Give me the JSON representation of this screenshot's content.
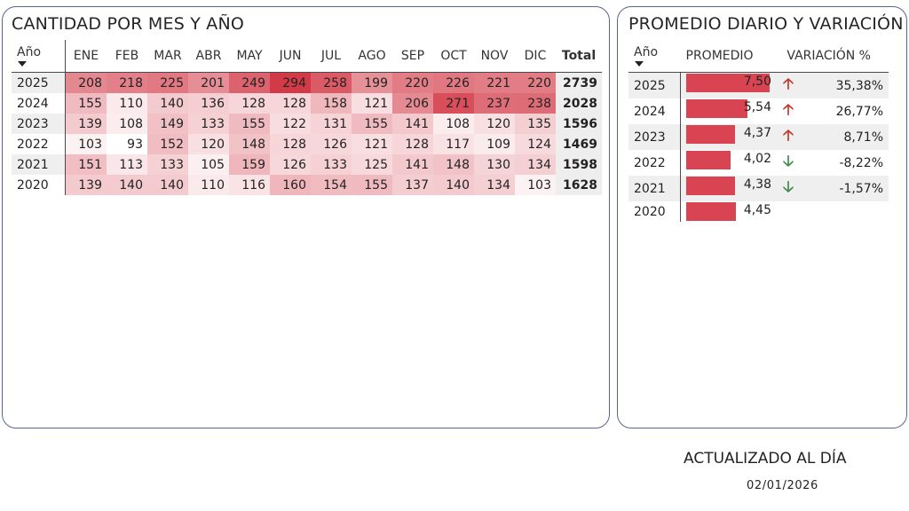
{
  "left_panel": {
    "title": "CANTIDAD POR MES Y AÑO",
    "year_header": "Año",
    "months": [
      "ENE",
      "FEB",
      "MAR",
      "ABR",
      "MAY",
      "JUN",
      "JUL",
      "AGO",
      "SEP",
      "OCT",
      "NOV",
      "DIC"
    ],
    "total_header": "Total",
    "rows": [
      {
        "year": "2025",
        "values": [
          208,
          218,
          225,
          201,
          249,
          294,
          258,
          199,
          220,
          226,
          221,
          220
        ],
        "total": "2739"
      },
      {
        "year": "2024",
        "values": [
          155,
          110,
          140,
          136,
          128,
          128,
          158,
          121,
          206,
          271,
          237,
          238
        ],
        "total": "2028"
      },
      {
        "year": "2023",
        "values": [
          139,
          108,
          149,
          133,
          155,
          122,
          131,
          155,
          141,
          108,
          120,
          135
        ],
        "total": "1596"
      },
      {
        "year": "2022",
        "values": [
          103,
          93,
          152,
          120,
          148,
          128,
          126,
          121,
          128,
          117,
          109,
          124
        ],
        "total": "1469"
      },
      {
        "year": "2021",
        "values": [
          151,
          113,
          133,
          105,
          159,
          126,
          133,
          125,
          141,
          148,
          130,
          134
        ],
        "total": "1598"
      },
      {
        "year": "2020",
        "values": [
          139,
          140,
          140,
          110,
          116,
          160,
          154,
          155,
          137,
          140,
          134,
          103
        ],
        "total": "1628"
      }
    ],
    "heat_colors": {
      "low": "#ffffff",
      "high": "#d33a48"
    }
  },
  "right_panel": {
    "title": "PROMEDIO DIARIO Y VARIACIÓN",
    "headers": {
      "year": "Año",
      "promedio": "PROMEDIO",
      "variacion": "VARIACIÓN %"
    },
    "rows": [
      {
        "year": "2025",
        "promedio": "7,50",
        "value": 7.5,
        "trend": "up",
        "variacion": "35,38%"
      },
      {
        "year": "2024",
        "promedio": "5,54",
        "value": 5.54,
        "trend": "up",
        "variacion": "26,77%"
      },
      {
        "year": "2023",
        "promedio": "4,37",
        "value": 4.37,
        "trend": "up",
        "variacion": "8,71%"
      },
      {
        "year": "2022",
        "promedio": "4,02",
        "value": 4.02,
        "trend": "down",
        "variacion": "-8,22%"
      },
      {
        "year": "2021",
        "promedio": "4,38",
        "value": 4.38,
        "trend": "down",
        "variacion": "-1,57%"
      },
      {
        "year": "2020",
        "promedio": "4,45",
        "value": 4.45,
        "trend": "",
        "variacion": ""
      }
    ],
    "bar_color": "#d94452",
    "bar_max": 7.5
  },
  "footer": {
    "label": "ACTUALIZADO AL DÍA",
    "date": "02/01/2026"
  }
}
